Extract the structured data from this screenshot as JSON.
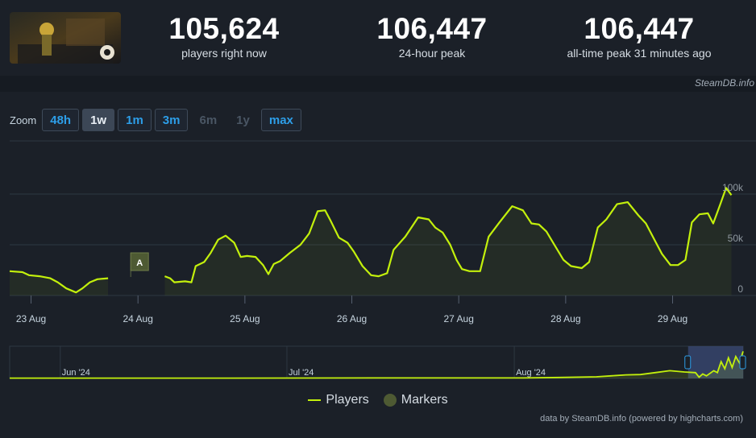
{
  "stats": [
    {
      "value": "105,624",
      "label": "players right now"
    },
    {
      "value": "106,447",
      "label": "24-hour peak"
    },
    {
      "value": "106,447",
      "label": "all-time peak 31 minutes ago"
    }
  ],
  "brand": "SteamDB.info",
  "zoom": {
    "label": "Zoom",
    "buttons": [
      {
        "label": "48h",
        "state": "normal"
      },
      {
        "label": "1w",
        "state": "active"
      },
      {
        "label": "1m",
        "state": "normal"
      },
      {
        "label": "3m",
        "state": "normal"
      },
      {
        "label": "6m",
        "state": "disabled"
      },
      {
        "label": "1y",
        "state": "disabled"
      },
      {
        "label": "max",
        "state": "normal"
      }
    ]
  },
  "legend": {
    "players": "Players",
    "markers": "Markers"
  },
  "credits": "data by SteamDB.info (powered by highcharts.com)",
  "colors": {
    "series": "#c3f00c",
    "background": "#1b2028",
    "grid": "#2e3742",
    "marker": "#4e5a33",
    "navigator_mask": "#3b4a75"
  },
  "chart_data": {
    "type": "line",
    "title": "",
    "xlabel": "",
    "ylabel": "",
    "ylim": [
      0,
      100000
    ],
    "y_ticks": [
      {
        "value": 0,
        "label": "0"
      },
      {
        "value": 50000,
        "label": "50k"
      },
      {
        "value": 100000,
        "label": "100k"
      }
    ],
    "x_range_days": [
      22.8,
      29.78
    ],
    "x_ticks": [
      {
        "day": 23,
        "label": "23 Aug"
      },
      {
        "day": 24,
        "label": "24 Aug"
      },
      {
        "day": 25,
        "label": "25 Aug"
      },
      {
        "day": 26,
        "label": "26 Aug"
      },
      {
        "day": 27,
        "label": "27 Aug"
      },
      {
        "day": 28,
        "label": "28 Aug"
      },
      {
        "day": 29,
        "label": "29 Aug"
      }
    ],
    "series": [
      {
        "name": "Players",
        "segments": [
          [
            [
              22.8,
              24000
            ],
            [
              22.92,
              23000
            ],
            [
              22.98,
              20000
            ],
            [
              23.08,
              19000
            ],
            [
              23.18,
              17000
            ],
            [
              23.25,
              13000
            ],
            [
              23.33,
              7000
            ],
            [
              23.42,
              3000
            ],
            [
              23.48,
              7000
            ],
            [
              23.55,
              13000
            ],
            [
              23.62,
              16000
            ],
            [
              23.72,
              17000
            ]
          ],
          [
            [
              24.25,
              19000
            ],
            [
              24.3,
              17000
            ],
            [
              24.34,
              13000
            ],
            [
              24.44,
              14000
            ],
            [
              24.5,
              13000
            ],
            [
              24.54,
              29000
            ],
            [
              24.62,
              33000
            ],
            [
              24.68,
              42000
            ],
            [
              24.75,
              55000
            ],
            [
              24.82,
              59000
            ],
            [
              24.9,
              52000
            ],
            [
              24.96,
              38000
            ],
            [
              25.02,
              39000
            ],
            [
              25.1,
              38000
            ],
            [
              25.17,
              30000
            ],
            [
              25.22,
              21000
            ],
            [
              25.27,
              31000
            ],
            [
              25.33,
              34000
            ],
            [
              25.42,
              42000
            ],
            [
              25.52,
              50000
            ],
            [
              25.6,
              61000
            ],
            [
              25.68,
              83000
            ],
            [
              25.75,
              84000
            ],
            [
              25.8,
              74000
            ],
            [
              25.88,
              57000
            ],
            [
              25.96,
              52000
            ],
            [
              26.02,
              43000
            ],
            [
              26.1,
              29000
            ],
            [
              26.18,
              20000
            ],
            [
              26.25,
              19000
            ],
            [
              26.33,
              22000
            ],
            [
              26.39,
              45000
            ],
            [
              26.5,
              58000
            ],
            [
              26.62,
              77000
            ],
            [
              26.72,
              75000
            ],
            [
              26.78,
              67000
            ],
            [
              26.85,
              62000
            ],
            [
              26.92,
              50000
            ],
            [
              26.98,
              35000
            ],
            [
              27.03,
              26000
            ],
            [
              27.1,
              24000
            ],
            [
              27.2,
              24000
            ],
            [
              27.28,
              58000
            ],
            [
              27.38,
              72000
            ],
            [
              27.5,
              88000
            ],
            [
              27.6,
              84000
            ],
            [
              27.68,
              71000
            ],
            [
              27.75,
              70000
            ],
            [
              27.82,
              63000
            ],
            [
              27.9,
              49000
            ],
            [
              27.98,
              35000
            ],
            [
              28.05,
              29000
            ],
            [
              28.15,
              27000
            ],
            [
              28.22,
              33000
            ],
            [
              28.3,
              67000
            ],
            [
              28.38,
              75000
            ],
            [
              28.48,
              90000
            ],
            [
              28.58,
              92000
            ],
            [
              28.68,
              79000
            ],
            [
              28.75,
              71000
            ],
            [
              28.83,
              55000
            ],
            [
              28.9,
              41000
            ],
            [
              28.98,
              30000
            ],
            [
              29.05,
              30000
            ],
            [
              29.12,
              35000
            ],
            [
              29.18,
              72000
            ],
            [
              29.25,
              80000
            ],
            [
              29.33,
              81000
            ],
            [
              29.38,
              71000
            ],
            [
              29.45,
              91000
            ],
            [
              29.5,
              106000
            ],
            [
              29.55,
              99000
            ]
          ]
        ]
      }
    ],
    "markers": [
      {
        "label": "A",
        "day": 24.0
      }
    ],
    "navigator": {
      "labels": [
        {
          "label": "Jun '24",
          "pos": 0.069
        },
        {
          "label": "Jul '24",
          "pos": 0.378
        },
        {
          "label": "Aug '24",
          "pos": 0.688
        }
      ],
      "series": [
        [
          0,
          1
        ],
        [
          0.3,
          1
        ],
        [
          0.5,
          1.5
        ],
        [
          0.7,
          1.5
        ],
        [
          0.75,
          3
        ],
        [
          0.8,
          5
        ],
        [
          0.82,
          8
        ],
        [
          0.84,
          11
        ],
        [
          0.86,
          12
        ],
        [
          0.88,
          18
        ],
        [
          0.9,
          24
        ],
        [
          0.92,
          20
        ],
        [
          0.935,
          18
        ],
        [
          0.94,
          4
        ],
        [
          0.945,
          14
        ],
        [
          0.95,
          8
        ],
        [
          0.96,
          24
        ],
        [
          0.965,
          18
        ],
        [
          0.97,
          52
        ],
        [
          0.975,
          30
        ],
        [
          0.98,
          64
        ],
        [
          0.985,
          34
        ],
        [
          0.99,
          68
        ],
        [
          0.995,
          48
        ],
        [
          1.0,
          84
        ]
      ],
      "selection": [
        0.925,
        1.0
      ]
    }
  }
}
